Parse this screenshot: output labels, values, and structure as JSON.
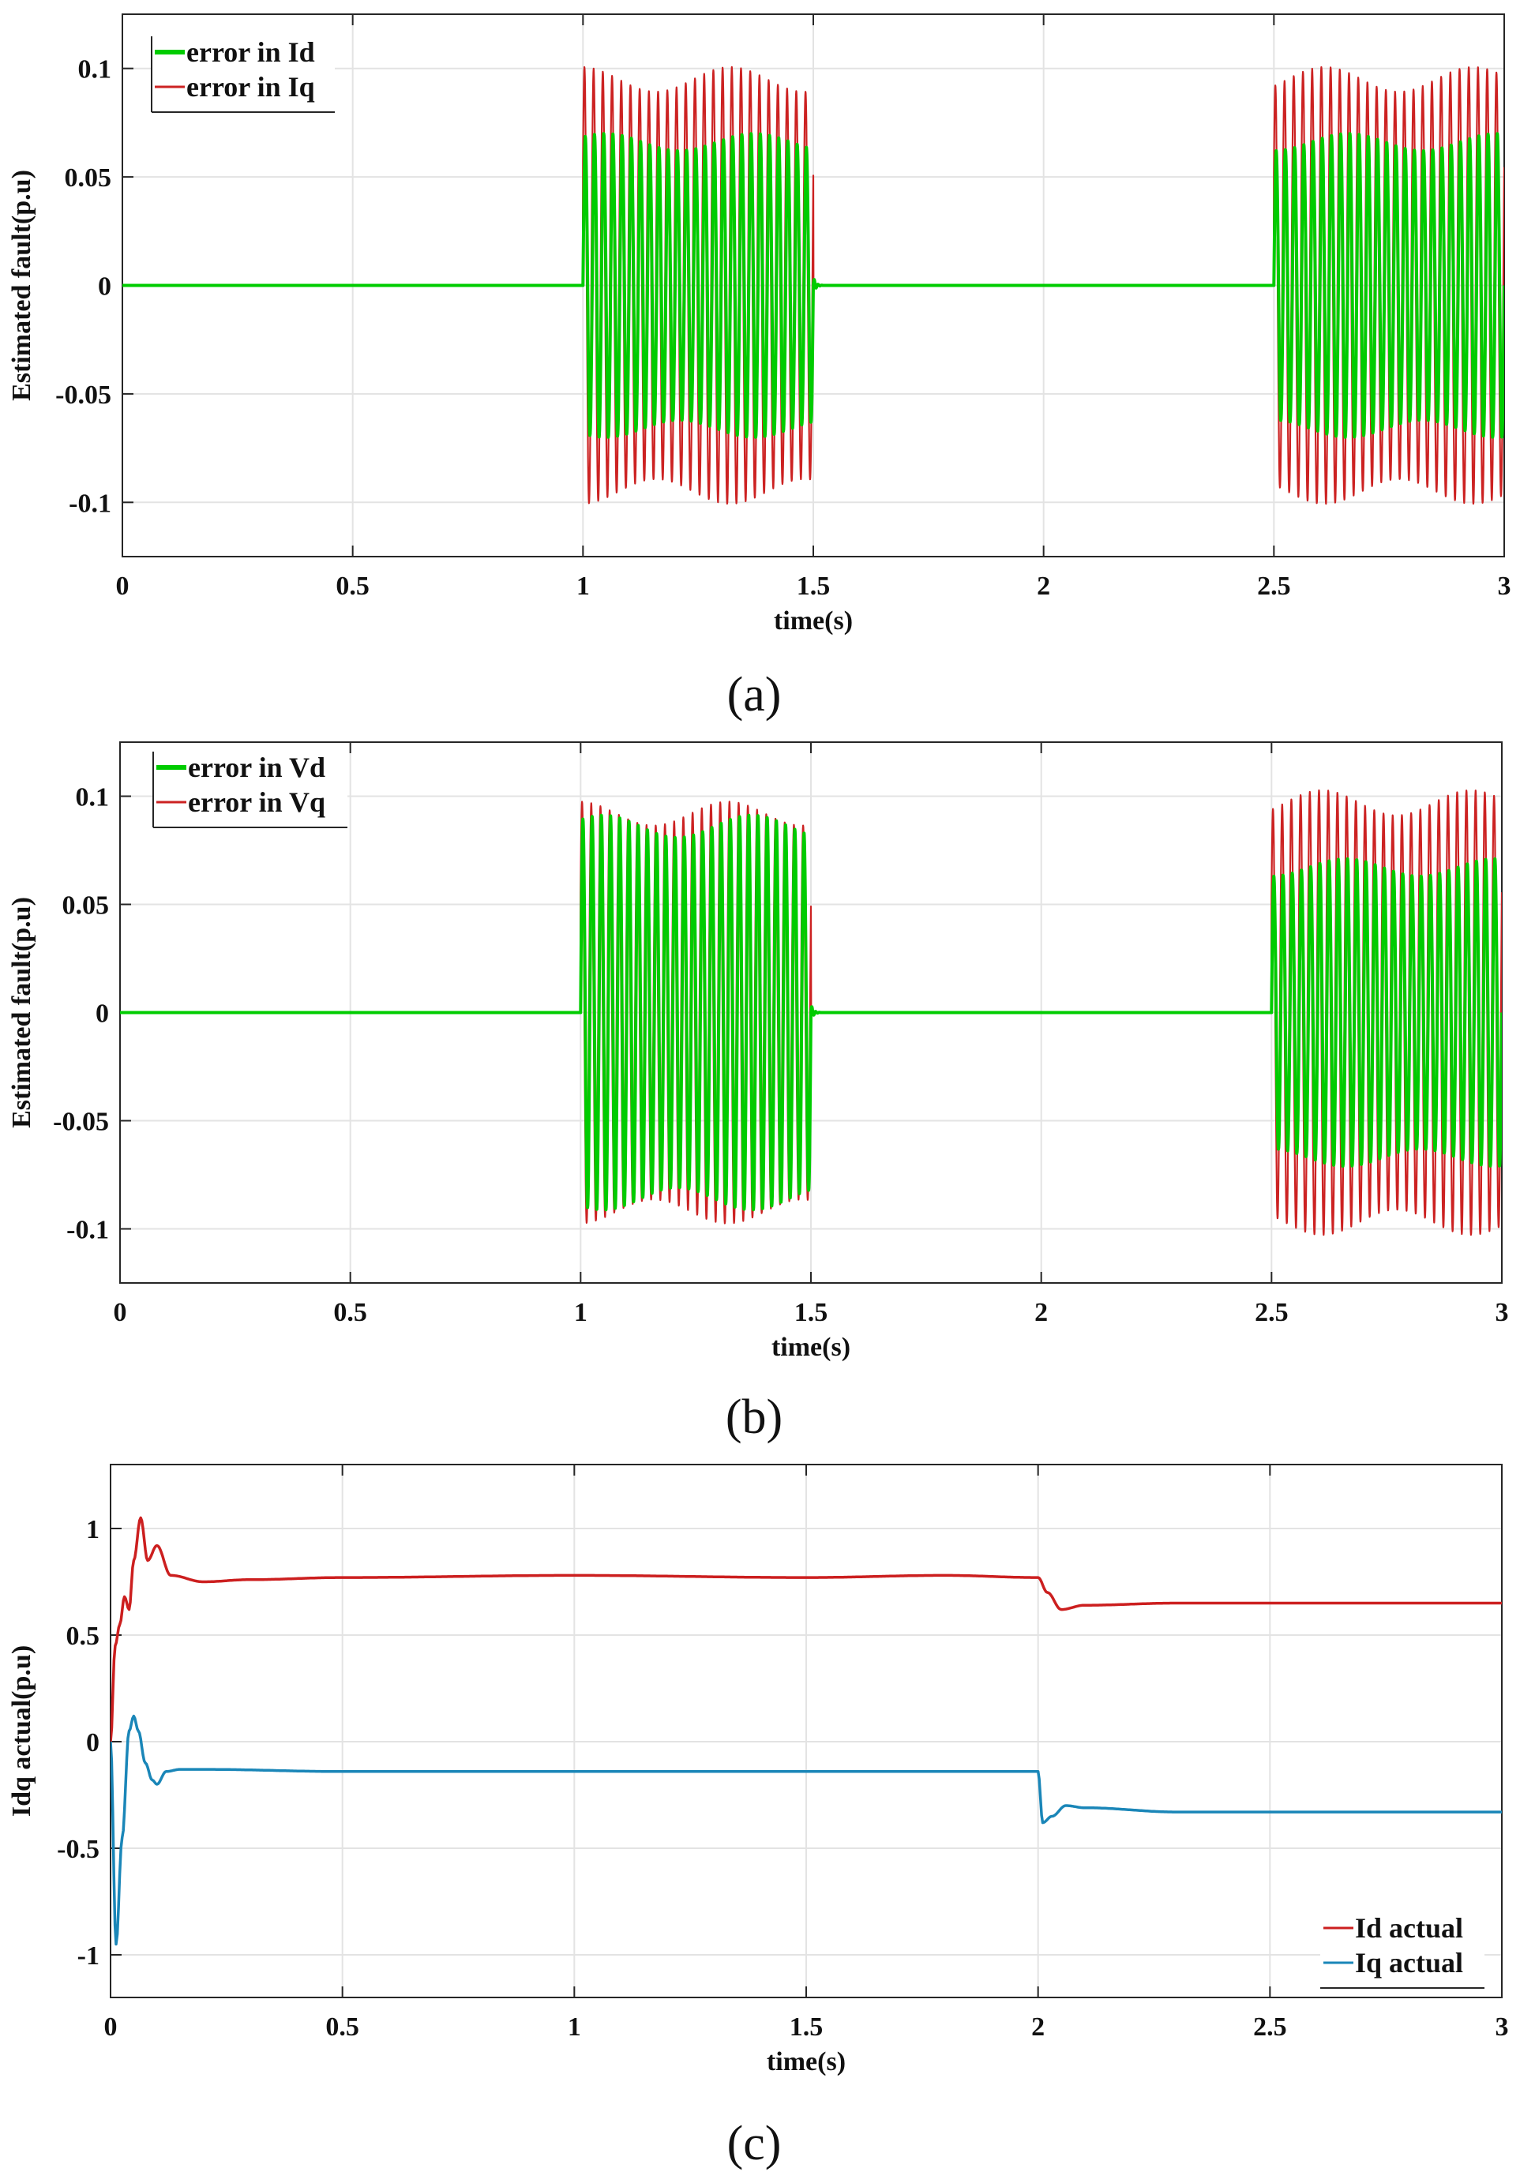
{
  "chart_data": [
    {
      "type": "line",
      "panel_label": "(a)",
      "xlabel": "time(s)",
      "ylabel": "Estimated fault(p.u)",
      "xlim": [
        0,
        3
      ],
      "ylim": [
        -0.125,
        0.125
      ],
      "xticks": [
        0,
        0.5,
        1,
        1.5,
        2,
        2.5,
        3
      ],
      "xtick_labels": [
        "0",
        "0.5",
        "1",
        "1.5",
        "2",
        "2.5",
        "3"
      ],
      "yticks": [
        -0.1,
        -0.05,
        0,
        0.05,
        0.1
      ],
      "ytick_labels": [
        "-0.1",
        "-0.05",
        "0",
        "0.05",
        "0.1"
      ],
      "grid": true,
      "legend_position": "top-left",
      "series": [
        {
          "name": "error in Id",
          "color": "#00cc00",
          "amplitude": 0.066,
          "fault_windows": [
            [
              1.0,
              1.5
            ],
            [
              2.5,
              3.0
            ]
          ]
        },
        {
          "name": "error in Iq",
          "color": "#cc2222",
          "amplitude": 0.095,
          "fault_windows": [
            [
              1.0,
              1.5
            ],
            [
              2.5,
              3.0
            ]
          ]
        }
      ]
    },
    {
      "type": "line",
      "panel_label": "(b)",
      "xlabel": "time(s)",
      "ylabel": "Estimated fault(p.u)",
      "xlim": [
        0,
        3
      ],
      "ylim": [
        -0.125,
        0.125
      ],
      "xticks": [
        0,
        0.5,
        1,
        1.5,
        2,
        2.5,
        3
      ],
      "xtick_labels": [
        "0",
        "0.5",
        "1",
        "1.5",
        "2",
        "2.5",
        "3"
      ],
      "yticks": [
        -0.1,
        -0.05,
        0,
        0.05,
        0.1
      ],
      "ytick_labels": [
        "-0.1",
        "-0.05",
        "0",
        "0.05",
        "0.1"
      ],
      "grid": true,
      "legend_position": "top-left",
      "series": [
        {
          "name": "error in Vd",
          "color": "#00cc00",
          "amplitude_segments": [
            0.086,
            0.067
          ],
          "fault_windows": [
            [
              1.0,
              1.5
            ],
            [
              2.5,
              3.0
            ]
          ]
        },
        {
          "name": "error in Vq",
          "color": "#cc2222",
          "amplitude_segments": [
            0.092,
            0.097
          ],
          "fault_windows": [
            [
              1.0,
              1.5
            ],
            [
              2.5,
              3.0
            ]
          ]
        }
      ]
    },
    {
      "type": "line",
      "panel_label": "(c)",
      "xlabel": "time(s)",
      "ylabel": "Idq actual(p.u)",
      "xlim": [
        0,
        3
      ],
      "ylim": [
        -1.2,
        1.3
      ],
      "xticks": [
        0,
        0.5,
        1,
        1.5,
        2,
        2.5,
        3
      ],
      "xtick_labels": [
        "0",
        "0.5",
        "1",
        "1.5",
        "2",
        "2.5",
        "3"
      ],
      "yticks": [
        -1,
        -0.5,
        0,
        0.5,
        1
      ],
      "ytick_labels": [
        "-1",
        "-0.5",
        "0",
        "0.5",
        "1"
      ],
      "grid": true,
      "legend_position": "bottom-right",
      "series": [
        {
          "name": "Id actual",
          "color": "#cc1f1f",
          "x": [
            0,
            0.01,
            0.02,
            0.03,
            0.04,
            0.05,
            0.065,
            0.08,
            0.1,
            0.13,
            0.2,
            0.3,
            0.5,
            1.0,
            1.5,
            1.8,
            2.0,
            2.02,
            2.05,
            2.1,
            2.3,
            2.6,
            3.0
          ],
          "values": [
            0,
            0.45,
            0.55,
            0.68,
            0.62,
            0.85,
            1.05,
            0.85,
            0.92,
            0.78,
            0.75,
            0.76,
            0.77,
            0.78,
            0.77,
            0.78,
            0.77,
            0.7,
            0.62,
            0.64,
            0.65,
            0.65,
            0.65
          ]
        },
        {
          "name": "Iq actual",
          "color": "#1a86b8",
          "x": [
            0,
            0.012,
            0.025,
            0.04,
            0.05,
            0.06,
            0.075,
            0.09,
            0.1,
            0.12,
            0.15,
            0.2,
            0.5,
            1.0,
            1.5,
            2.0,
            2.01,
            2.03,
            2.06,
            2.1,
            2.3,
            3.0
          ],
          "values": [
            0,
            -0.95,
            -0.45,
            0.05,
            0.12,
            0.05,
            -0.1,
            -0.18,
            -0.2,
            -0.14,
            -0.13,
            -0.13,
            -0.14,
            -0.14,
            -0.14,
            -0.14,
            -0.38,
            -0.35,
            -0.3,
            -0.31,
            -0.33,
            -0.33
          ]
        }
      ]
    }
  ]
}
